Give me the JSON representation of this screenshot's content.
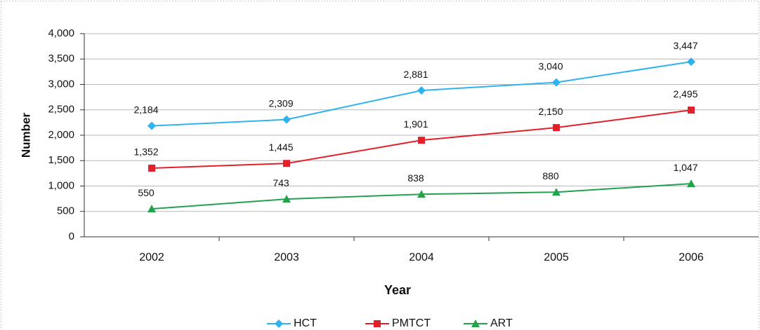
{
  "chart_data": {
    "type": "line",
    "xlabel": "Year",
    "ylabel": "Number",
    "categories": [
      "2002",
      "2003",
      "2004",
      "2005",
      "2006"
    ],
    "series": [
      {
        "name": "HCT",
        "color": "#2fb3ef",
        "marker": "diamond",
        "values": [
          2184,
          2309,
          2881,
          3040,
          3447
        ],
        "value_labels": [
          "2,184",
          "2,309",
          "2,881",
          "3,040",
          "3,447"
        ]
      },
      {
        "name": "PMTCT",
        "color": "#e3202a",
        "marker": "square",
        "values": [
          1352,
          1445,
          1901,
          2150,
          2495
        ],
        "value_labels": [
          "1,352",
          "1,445",
          "1,901",
          "2,150",
          "2,495"
        ]
      },
      {
        "name": "ART",
        "color": "#22a24a",
        "marker": "triangle",
        "values": [
          550,
          743,
          838,
          880,
          1047
        ],
        "value_labels": [
          "550",
          "743",
          "838",
          "880",
          "1,047"
        ]
      }
    ],
    "ylim": [
      0,
      4000
    ],
    "yticks": [
      0,
      500,
      {
        "value": 1000,
        "label": "1,000"
      },
      {
        "value": 1500,
        "label": "1,500"
      },
      {
        "value": 2000,
        "label": "2,000"
      },
      {
        "value": 2500,
        "label": "2,500"
      },
      {
        "value": 3000,
        "label": "3,000"
      },
      {
        "value": 3500,
        "label": "3,500"
      },
      {
        "value": 4000,
        "label": "4,000"
      }
    ],
    "grid": true,
    "legend": "bottom"
  }
}
